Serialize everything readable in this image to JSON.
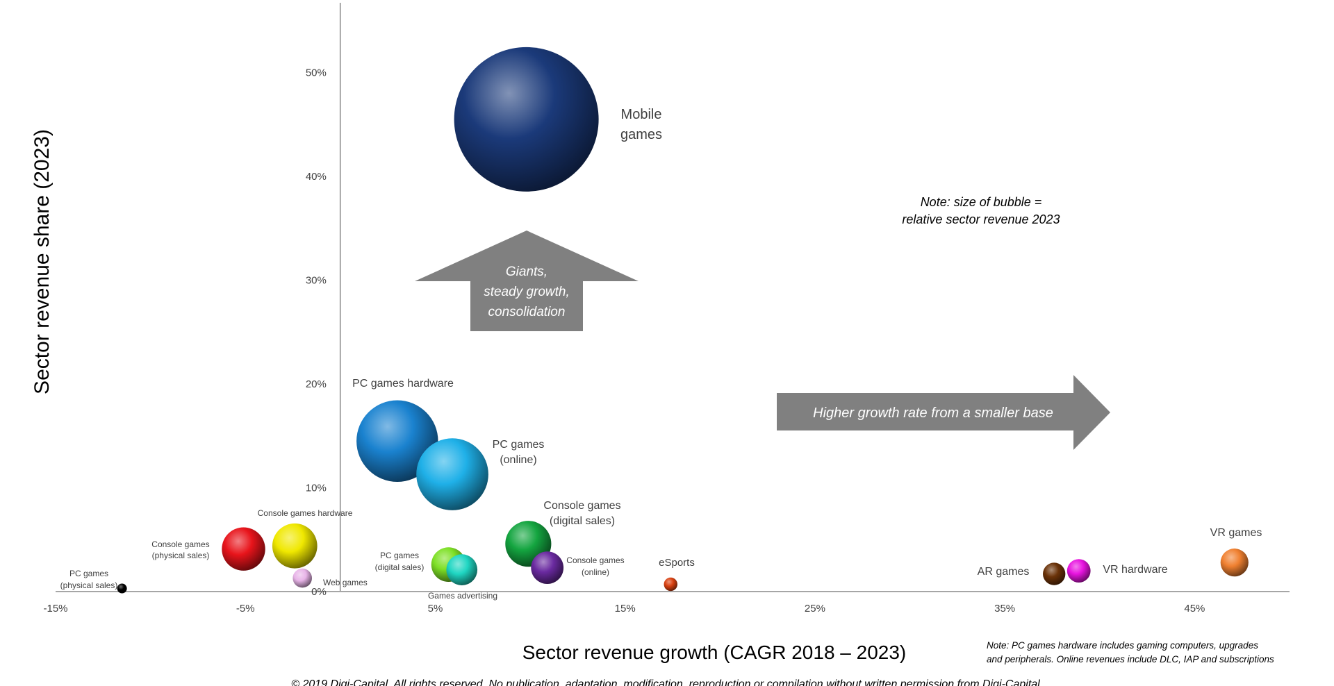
{
  "chart_data": {
    "type": "scatter",
    "title": "",
    "xlabel": "Sector revenue growth (CAGR 2018 – 2023)",
    "ylabel": "Sector revenue share (2023)",
    "xlim": [
      -15,
      50
    ],
    "ylim": [
      0,
      57
    ],
    "x_ticks": [
      -15,
      -5,
      5,
      15,
      25,
      35,
      45
    ],
    "x_tick_labels": [
      "-15%",
      "-5%",
      "5%",
      "15%",
      "25%",
      "35%",
      "45%"
    ],
    "y_ticks": [
      0,
      10,
      20,
      30,
      40,
      50
    ],
    "y_tick_labels": [
      "0%",
      "10%",
      "20%",
      "30%",
      "40%",
      "50%"
    ],
    "grid": false,
    "size_encoding": "relative sector revenue 2023",
    "points": [
      {
        "label": "Mobile games",
        "x": 9.8,
        "y": 45.5,
        "size": 45.5,
        "color": "#1b3a7a"
      },
      {
        "label": "PC games hardware",
        "x": 3.0,
        "y": 14.5,
        "size": 14.5,
        "color": "#1a82cf"
      },
      {
        "label": "PC games (online)",
        "x": 5.9,
        "y": 11.3,
        "size": 11.3,
        "color": "#1fb0e8"
      },
      {
        "label": "Console games (digital sales)",
        "x": 9.9,
        "y": 4.6,
        "size": 4.6,
        "color": "#14a540"
      },
      {
        "label": "Console games (online)",
        "x": 10.9,
        "y": 2.3,
        "size": 2.3,
        "color": "#6a2aa0"
      },
      {
        "label": "Console games hardware",
        "x": -2.4,
        "y": 4.4,
        "size": 4.4,
        "color": "#f0e800"
      },
      {
        "label": "Console games (physical sales)",
        "x": -5.1,
        "y": 4.1,
        "size": 4.1,
        "color": "#e8141b"
      },
      {
        "label": "PC games (digital sales)",
        "x": 5.7,
        "y": 2.6,
        "size": 2.6,
        "color": "#7ee026"
      },
      {
        "label": "Games advertising",
        "x": 6.4,
        "y": 2.1,
        "size": 2.1,
        "color": "#1fd6c2"
      },
      {
        "label": "Web games",
        "x": -2.0,
        "y": 1.3,
        "size": 0.8,
        "color": "#e8b4e8"
      },
      {
        "label": "PC games (physical sales)",
        "x": -11.5,
        "y": 0.3,
        "size": 0.2,
        "color": "#000000"
      },
      {
        "label": "eSports",
        "x": 17.4,
        "y": 0.7,
        "size": 0.4,
        "color": "#d84010"
      },
      {
        "label": "AR games",
        "x": 37.6,
        "y": 1.7,
        "size": 1.1,
        "color": "#6a3208"
      },
      {
        "label": "VR hardware",
        "x": 38.9,
        "y": 2.0,
        "size": 1.2,
        "color": "#e814e0"
      },
      {
        "label": "VR games",
        "x": 47.1,
        "y": 2.8,
        "size": 1.7,
        "color": "#f08030"
      }
    ],
    "annotations": {
      "up_arrow": [
        "Giants,",
        "steady growth,",
        "consolidation"
      ],
      "right_arrow": "Higher growth rate from a smaller base",
      "bubble_note": [
        "Note: size of bubble =",
        "relative sector revenue 2023"
      ],
      "footnote": [
        "Note: PC games hardware includes gaming computers, upgrades",
        "and peripherals. Online revenues include DLC, IAP and subscriptions"
      ],
      "copyright": "© 2019 Digi-Capital. All rights reserved. No publication, adaptation, modification, reproduction or compilation without written permission from Digi-Capital"
    }
  },
  "colors": {
    "axis": "#a6a6a6",
    "arrow": "#808080",
    "text": "#404040"
  }
}
